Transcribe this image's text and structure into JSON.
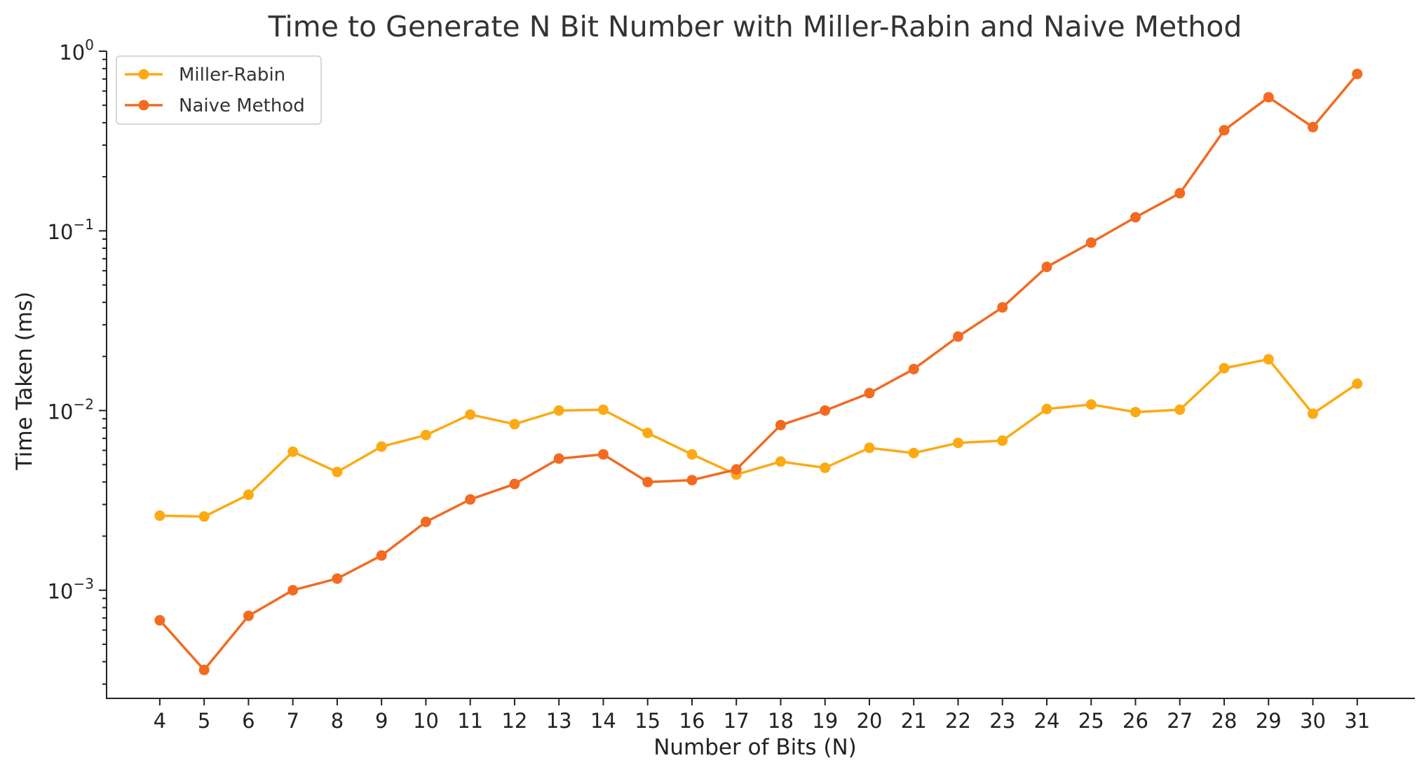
{
  "colors": {
    "miller_rabin": "#FBAA14",
    "naive": "#F26B21",
    "axis": "#222222",
    "title": "#333333"
  },
  "chart_data": {
    "type": "line",
    "title": "Time to Generate N Bit Number with Miller-Rabin and Naive Method",
    "xlabel": "Number of Bits (N)",
    "ylabel": "Time Taken (ms)",
    "yscale": "log",
    "ylim": [
      0.00025,
      1.0
    ],
    "y_ticks": [
      {
        "value": 0.001,
        "base": "10",
        "exp": "−3"
      },
      {
        "value": 0.01,
        "base": "10",
        "exp": "−2"
      },
      {
        "value": 0.1,
        "base": "10",
        "exp": "−1"
      },
      {
        "value": 1.0,
        "base": "10",
        "exp": "0"
      }
    ],
    "x": [
      4,
      5,
      6,
      7,
      8,
      9,
      10,
      11,
      12,
      13,
      14,
      15,
      16,
      17,
      18,
      19,
      20,
      21,
      22,
      23,
      24,
      25,
      26,
      27,
      28,
      29,
      30,
      31
    ],
    "xlim": [
      2.8,
      32.3
    ],
    "grid": false,
    "legend_position": "top-left",
    "series": [
      {
        "name": "Miller-Rabin",
        "color_key": "miller_rabin",
        "marker": "circle",
        "values": [
          0.0026,
          0.00257,
          0.0034,
          0.0059,
          0.00455,
          0.0063,
          0.0073,
          0.0095,
          0.0084,
          0.01,
          0.0101,
          0.0075,
          0.0057,
          0.0044,
          0.0052,
          0.0048,
          0.0062,
          0.0058,
          0.0066,
          0.0068,
          0.0102,
          0.0108,
          0.0098,
          0.0101,
          0.0172,
          0.0193,
          0.0096,
          0.0141
        ]
      },
      {
        "name": "Naive Method",
        "color_key": "naive",
        "marker": "circle",
        "values": [
          0.00068,
          0.00036,
          0.00072,
          0.001,
          0.00116,
          0.00156,
          0.0024,
          0.0032,
          0.0039,
          0.0054,
          0.0057,
          0.004,
          0.0041,
          0.0047,
          0.0083,
          0.01,
          0.0125,
          0.017,
          0.0258,
          0.0375,
          0.063,
          0.086,
          0.119,
          0.162,
          0.363,
          0.554,
          0.378,
          0.747
        ]
      }
    ]
  }
}
